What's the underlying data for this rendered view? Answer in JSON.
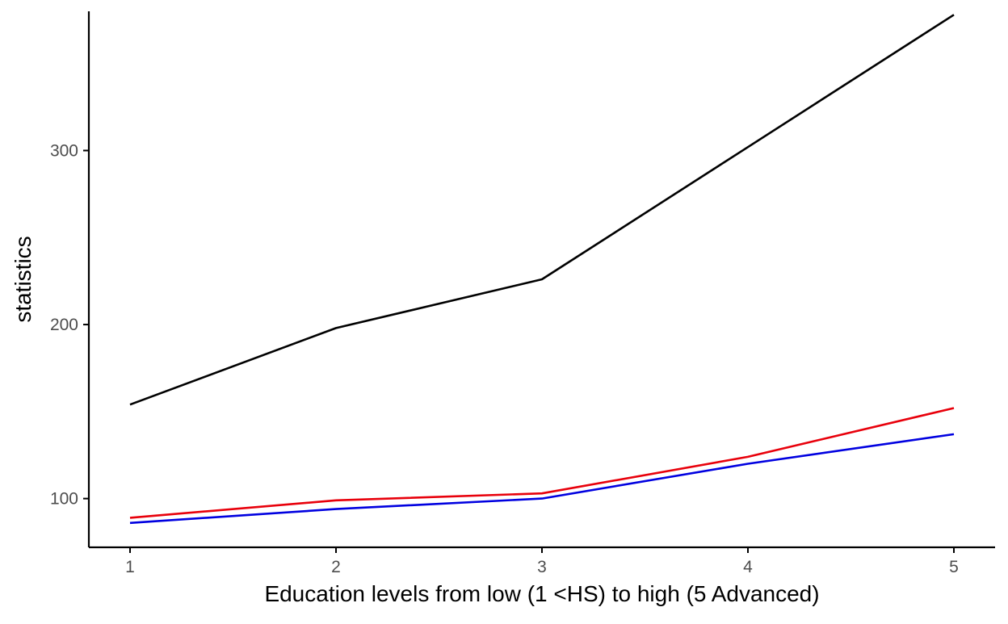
{
  "chart_data": {
    "type": "line",
    "title": "",
    "xlabel": "Education levels from low (1 <HS) to high (5 Advanced)",
    "ylabel": "statistics",
    "x": [
      1,
      2,
      3,
      4,
      5
    ],
    "x_tick_labels": [
      "1",
      "2",
      "3",
      "4",
      "5"
    ],
    "y_ticks": [
      100,
      200,
      300
    ],
    "y_tick_labels": [
      "100",
      "200",
      "300"
    ],
    "xlim": [
      0.8,
      5.2
    ],
    "ylim": [
      72,
      380
    ],
    "grid": false,
    "legend": "none",
    "series": [
      {
        "color": "#000000",
        "values": [
          154,
          198,
          226,
          302,
          378
        ]
      },
      {
        "color": "#e8000b",
        "values": [
          89,
          99,
          103,
          124,
          152
        ]
      },
      {
        "color": "#0000e0",
        "values": [
          86,
          94,
          100,
          120,
          137
        ]
      }
    ]
  }
}
